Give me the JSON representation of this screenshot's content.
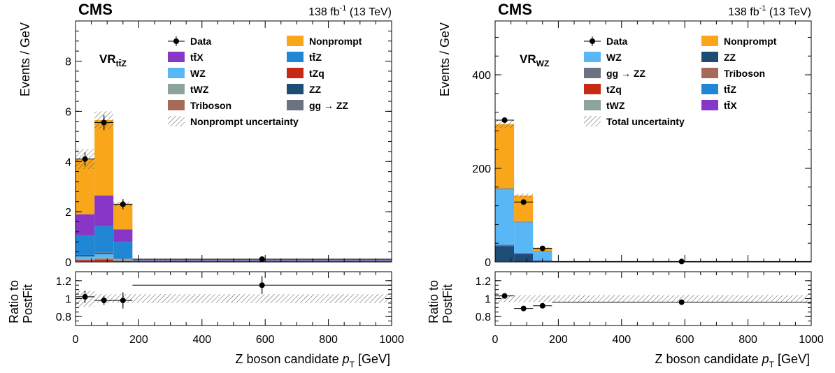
{
  "colors": {
    "Nonprompt": "#f9a61b",
    "ttX": "#8836c8",
    "ttZ": "#1f87d4",
    "WZ": "#5ab7f5",
    "tZq": "#c42a14",
    "tWZ": "#8fa39d",
    "ZZ": "#1d4c74",
    "Triboson": "#a86a58",
    "ggZZ": "#6b7280"
  },
  "chart_data": [
    {
      "type": "bar",
      "stacked": true,
      "experiment": "CMS",
      "lumi_label": "138 fb",
      "lumi_sup": "-1",
      "energy_label": " (13 TeV)",
      "region_main": "VR",
      "region_sub": "tt̄Z",
      "ylabel": "Events / GeV",
      "xlabel": "Z boson candidate",
      "xlabel_var": "p",
      "xlabel_sub": "T",
      "xlabel_unit": " [GeV]",
      "ratio_ylabel_1": "Ratio to",
      "ratio_ylabel_2": "PostFit",
      "xlim": [
        0,
        1000
      ],
      "ylim": [
        0,
        9.6
      ],
      "yticks": [
        0,
        2,
        4,
        6,
        8
      ],
      "xticks": [
        0,
        200,
        400,
        600,
        800,
        1000
      ],
      "ratio_ylim": [
        0.7,
        1.3
      ],
      "ratio_yticks": [
        "0.8",
        "1",
        "1.2"
      ],
      "bin_edges": [
        0,
        60,
        120,
        180,
        1000
      ],
      "series": [
        {
          "key": "Triboson",
          "values": [
            0.02,
            0.02,
            0.01,
            0.0
          ]
        },
        {
          "key": "tZq",
          "values": [
            0.05,
            0.08,
            0.03,
            0.005
          ]
        },
        {
          "key": "tWZ",
          "values": [
            0.05,
            0.07,
            0.04,
            0.005
          ]
        },
        {
          "key": "WZ",
          "values": [
            0.1,
            0.15,
            0.05,
            0.01
          ]
        },
        {
          "key": "ZZ",
          "values": [
            0.05,
            0.05,
            0.02,
            0.005
          ]
        },
        {
          "key": "ggZZ",
          "values": [
            0.01,
            0.01,
            0.0,
            0.0
          ]
        },
        {
          "key": "ttZ",
          "values": [
            0.78,
            1.05,
            0.65,
            0.03
          ]
        },
        {
          "key": "ttX",
          "values": [
            0.84,
            1.22,
            0.5,
            0.02
          ]
        },
        {
          "key": "Nonprompt",
          "values": [
            2.2,
            3.0,
            1.0,
            0.03
          ]
        }
      ],
      "uncertainty": [
        0.4,
        0.35,
        0.1,
        0.01
      ],
      "data": {
        "x": [
          30,
          90,
          150,
          590
        ],
        "y": [
          4.1,
          5.55,
          2.3,
          0.11
        ],
        "yerr": [
          0.27,
          0.3,
          0.2,
          0.012
        ],
        "xerr": [
          30,
          30,
          30,
          410
        ]
      },
      "ratio": {
        "x": [
          30,
          90,
          150,
          590
        ],
        "y": [
          1.02,
          0.98,
          0.98,
          1.15
        ],
        "yerr": [
          0.07,
          0.05,
          0.09,
          0.1
        ],
        "xerr": [
          30,
          30,
          30,
          410
        ]
      },
      "ratio_band": [
        0.09,
        0.05,
        0.05,
        0.05
      ],
      "legend": [
        {
          "label": "Data",
          "key": "Data",
          "kind": "marker"
        },
        {
          "label": "Nonprompt",
          "key": "Nonprompt",
          "kind": "box"
        },
        {
          "label": "tt̄X",
          "key": "ttX",
          "kind": "box"
        },
        {
          "label": "tt̄Z",
          "key": "ttZ",
          "kind": "box"
        },
        {
          "label": "WZ",
          "key": "WZ",
          "kind": "box"
        },
        {
          "label": "tZq",
          "key": "tZq",
          "kind": "box"
        },
        {
          "label": "tWZ",
          "key": "tWZ",
          "kind": "box"
        },
        {
          "label": "ZZ",
          "key": "ZZ",
          "kind": "box"
        },
        {
          "label": "Triboson",
          "key": "Triboson",
          "kind": "box"
        },
        {
          "label": "gg → ZZ",
          "key": "ggZZ",
          "kind": "box"
        },
        {
          "label": "Nonprompt uncertainty",
          "key": "unc",
          "kind": "hatch"
        }
      ]
    },
    {
      "type": "bar",
      "stacked": true,
      "experiment": "CMS",
      "lumi_label": "138 fb",
      "lumi_sup": "-1",
      "energy_label": " (13 TeV)",
      "region_main": "VR",
      "region_sub": "WZ",
      "ylabel": "Events / GeV",
      "xlabel": "Z boson candidate",
      "xlabel_var": "p",
      "xlabel_sub": "T",
      "xlabel_unit": " [GeV]",
      "ratio_ylabel_1": "Ratio to",
      "ratio_ylabel_2": "PostFit",
      "xlim": [
        0,
        1000
      ],
      "ylim": [
        0,
        515
      ],
      "yticks": [
        0,
        200,
        400
      ],
      "xticks": [
        0,
        200,
        400,
        600,
        800,
        1000
      ],
      "ratio_ylim": [
        0.7,
        1.3
      ],
      "ratio_yticks": [
        "0.8",
        "1",
        "1.2"
      ],
      "bin_edges": [
        0,
        60,
        120,
        180,
        1000
      ],
      "series": [
        {
          "key": "tZq",
          "values": [
            1.0,
            0.5,
            0.2,
            0.0
          ]
        },
        {
          "key": "ZZ",
          "values": [
            33,
            16,
            2,
            0.2
          ]
        },
        {
          "key": "ttX",
          "values": [
            1.0,
            1.0,
            0.5,
            0.0
          ]
        },
        {
          "key": "ttZ",
          "values": [
            2.0,
            2.0,
            1.0,
            0.1
          ]
        },
        {
          "key": "WZ",
          "values": [
            118,
            65,
            18,
            0.4
          ]
        },
        {
          "key": "ggZZ",
          "values": [
            1.0,
            1.0,
            0.2,
            0.0
          ]
        },
        {
          "key": "Triboson",
          "values": [
            1.0,
            1.0,
            0.5,
            0.0
          ]
        },
        {
          "key": "tWZ",
          "values": [
            0.5,
            0.5,
            0.3,
            0.0
          ]
        },
        {
          "key": "Nonprompt",
          "values": [
            137,
            55,
            7.5,
            0.3
          ]
        }
      ],
      "uncertainty": [
        8,
        4,
        1,
        0.1
      ],
      "data": {
        "x": [
          30,
          90,
          150,
          590
        ],
        "y": [
          303,
          128,
          29,
          0.9
        ],
        "yerr": [
          5,
          3,
          2,
          0.1
        ],
        "xerr": [
          30,
          30,
          30,
          410
        ]
      },
      "ratio": {
        "x": [
          30,
          90,
          150,
          590
        ],
        "y": [
          1.03,
          0.89,
          0.92,
          0.96
        ],
        "yerr": [
          0.0,
          0.0,
          0.0,
          0.0
        ],
        "xerr": [
          30,
          30,
          30,
          410
        ]
      },
      "ratio_band": [
        0.04,
        0.04,
        0.04,
        0.04
      ],
      "legend": [
        {
          "label": "Data",
          "key": "Data",
          "kind": "marker"
        },
        {
          "label": "Nonprompt",
          "key": "Nonprompt",
          "kind": "box"
        },
        {
          "label": "WZ",
          "key": "WZ",
          "kind": "box"
        },
        {
          "label": "ZZ",
          "key": "ZZ",
          "kind": "box"
        },
        {
          "label": "gg → ZZ",
          "key": "ggZZ",
          "kind": "box"
        },
        {
          "label": "Triboson",
          "key": "Triboson",
          "kind": "box"
        },
        {
          "label": "tZq",
          "key": "tZq",
          "kind": "box"
        },
        {
          "label": "tt̄Z",
          "key": "ttZ",
          "kind": "box"
        },
        {
          "label": "tWZ",
          "key": "tWZ",
          "kind": "box"
        },
        {
          "label": "tt̄X",
          "key": "ttX",
          "kind": "box"
        },
        {
          "label": "Total uncertainty",
          "key": "unc",
          "kind": "hatch"
        }
      ]
    }
  ]
}
